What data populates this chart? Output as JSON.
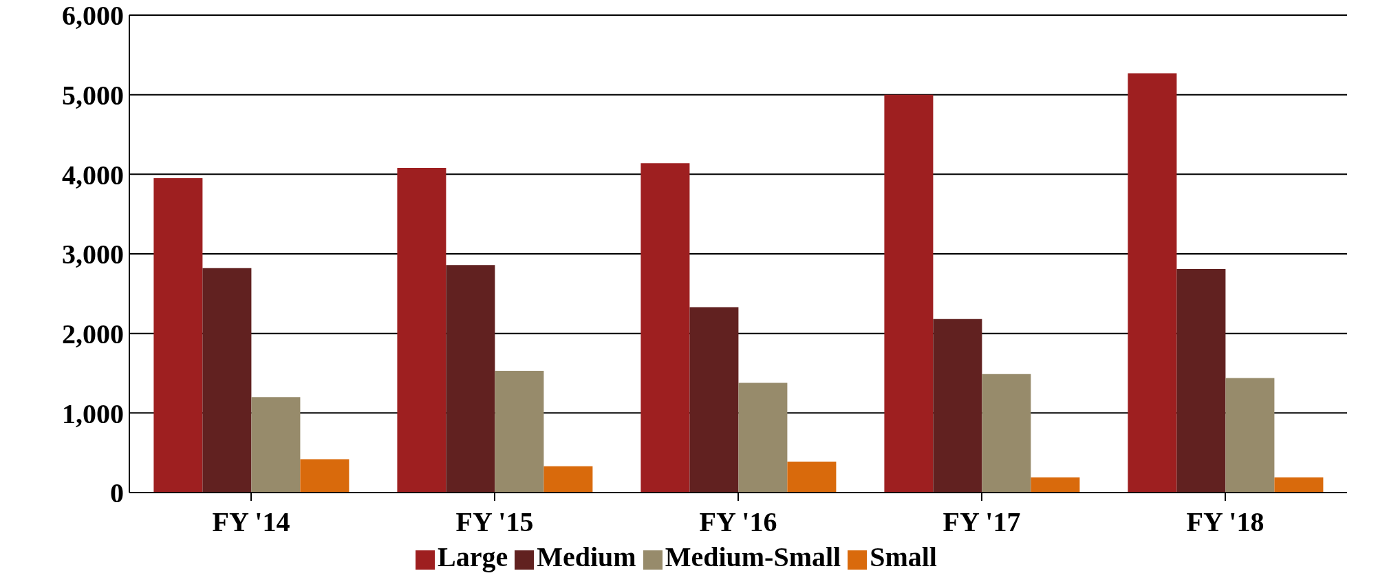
{
  "chart_data": {
    "type": "bar",
    "categories": [
      "FY '14",
      "FY '15",
      "FY '16",
      "FY '17",
      "FY '18"
    ],
    "series": [
      {
        "name": "Large",
        "color": "#9e1f20",
        "values": [
          3950,
          4080,
          4140,
          5000,
          5270
        ]
      },
      {
        "name": "Medium",
        "color": "#612120",
        "values": [
          2820,
          2860,
          2330,
          2180,
          2810
        ]
      },
      {
        "name": "Medium-Small",
        "color": "#978b6b",
        "values": [
          1200,
          1530,
          1380,
          1490,
          1440
        ]
      },
      {
        "name": "Small",
        "color": "#d96a0c",
        "values": [
          420,
          330,
          390,
          190,
          190
        ]
      }
    ],
    "ylim": [
      0,
      6000
    ],
    "yticks": [
      0,
      {
        "value": 1000,
        "label": "1,000"
      },
      {
        "value": 2000,
        "label": "2,000"
      },
      {
        "value": 3000,
        "label": "3,000"
      },
      {
        "value": 4000,
        "label": "4,000"
      },
      {
        "value": 5000,
        "label": "5,000"
      },
      {
        "value": 6000,
        "label": "6,000"
      }
    ],
    "grid": "y",
    "legend": "bottom"
  }
}
